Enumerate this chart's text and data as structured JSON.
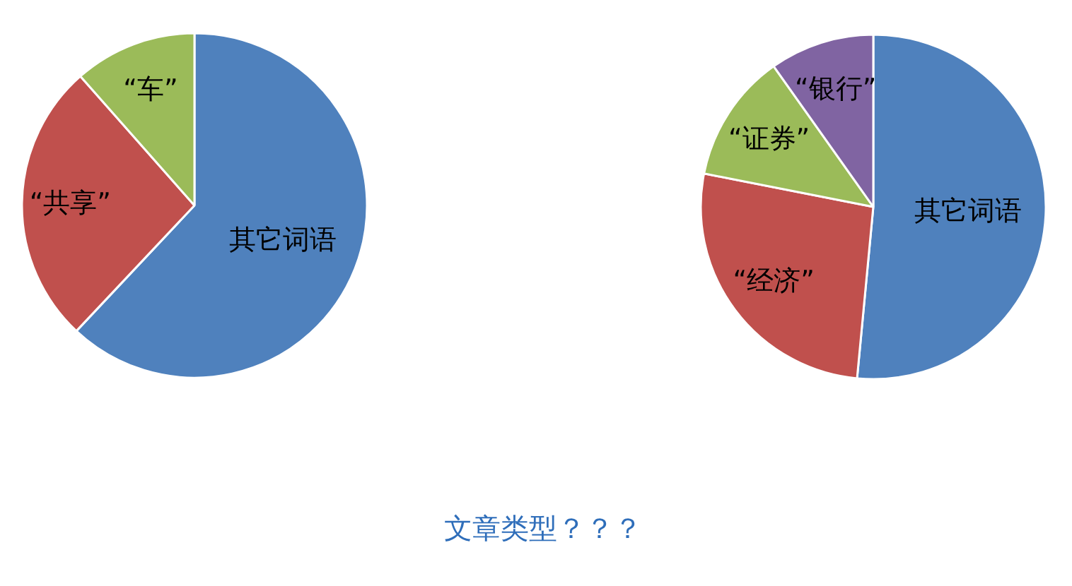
{
  "chart_data": [
    {
      "type": "pie",
      "categories": [
        "其它词语",
        "“共享”",
        "“车”"
      ],
      "values": [
        62,
        26.5,
        11.5
      ],
      "colors": [
        "#4f81bd",
        "#c0504d",
        "#9bbb59"
      ]
    },
    {
      "type": "pie",
      "categories": [
        "其它词语",
        "“经济”",
        "“证券”",
        "“银行”"
      ],
      "values": [
        51.5,
        26.6,
        12.1,
        9.8
      ],
      "colors": [
        "#4f81bd",
        "#c0504d",
        "#9bbb59",
        "#8064a2"
      ],
      "annotations": [
        "文章类型？？？"
      ]
    }
  ]
}
